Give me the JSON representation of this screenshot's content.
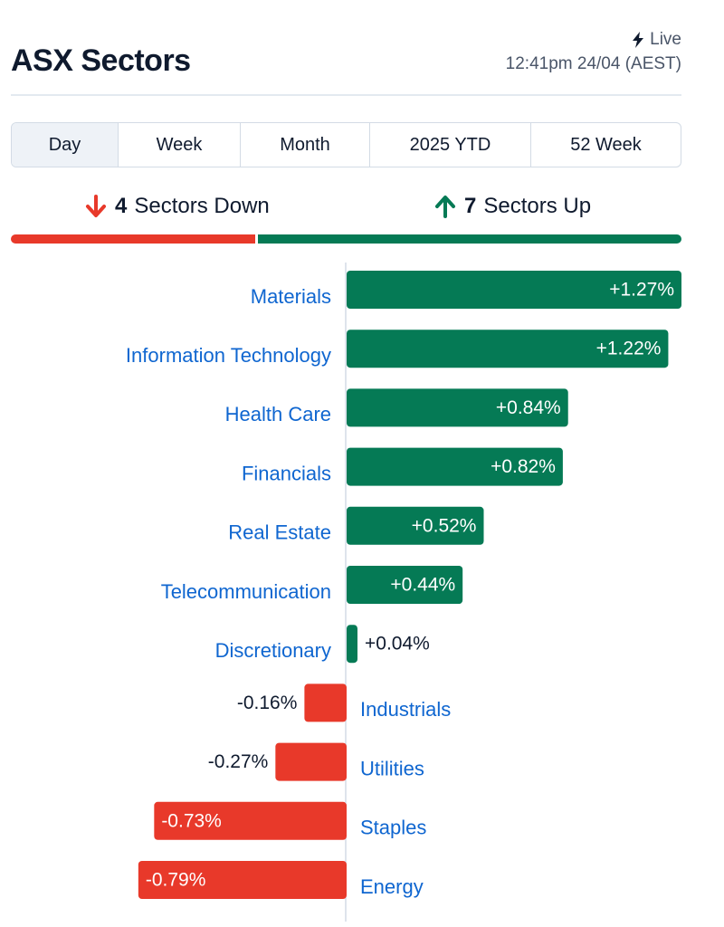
{
  "header": {
    "title": "ASX Sectors",
    "live_label": "Live",
    "timestamp": "12:41pm 24/04 (AEST)"
  },
  "tabs": [
    {
      "label": "Day",
      "active": true
    },
    {
      "label": "Week",
      "active": false
    },
    {
      "label": "Month",
      "active": false
    },
    {
      "label": "2025 YTD",
      "active": false
    },
    {
      "label": "52 Week",
      "active": false
    }
  ],
  "summary": {
    "down_count": "4",
    "down_text": "Sectors Down",
    "up_count": "7",
    "up_text": "Sectors Up"
  },
  "colors": {
    "up": "#057a55",
    "down": "#e8392a",
    "link": "#0f66d0",
    "text": "#0f1a2e"
  },
  "icons": {
    "live": "bolt-icon",
    "down": "arrow-down-icon",
    "up": "arrow-up-icon"
  },
  "chart_data": {
    "type": "bar",
    "orientation": "horizontal",
    "categories": [
      "Materials",
      "Information Technology",
      "Health Care",
      "Financials",
      "Real Estate",
      "Telecommunication",
      "Discretionary",
      "Industrials",
      "Utilities",
      "Staples",
      "Energy"
    ],
    "values": [
      1.27,
      1.22,
      0.84,
      0.82,
      0.52,
      0.44,
      0.04,
      -0.16,
      -0.27,
      -0.73,
      -0.79
    ],
    "value_labels": [
      "+1.27%",
      "+1.22%",
      "+0.84%",
      "+0.82%",
      "+0.52%",
      "+0.44%",
      "+0.04%",
      "-0.16%",
      "-0.27%",
      "-0.73%",
      "-0.79%"
    ]
  }
}
